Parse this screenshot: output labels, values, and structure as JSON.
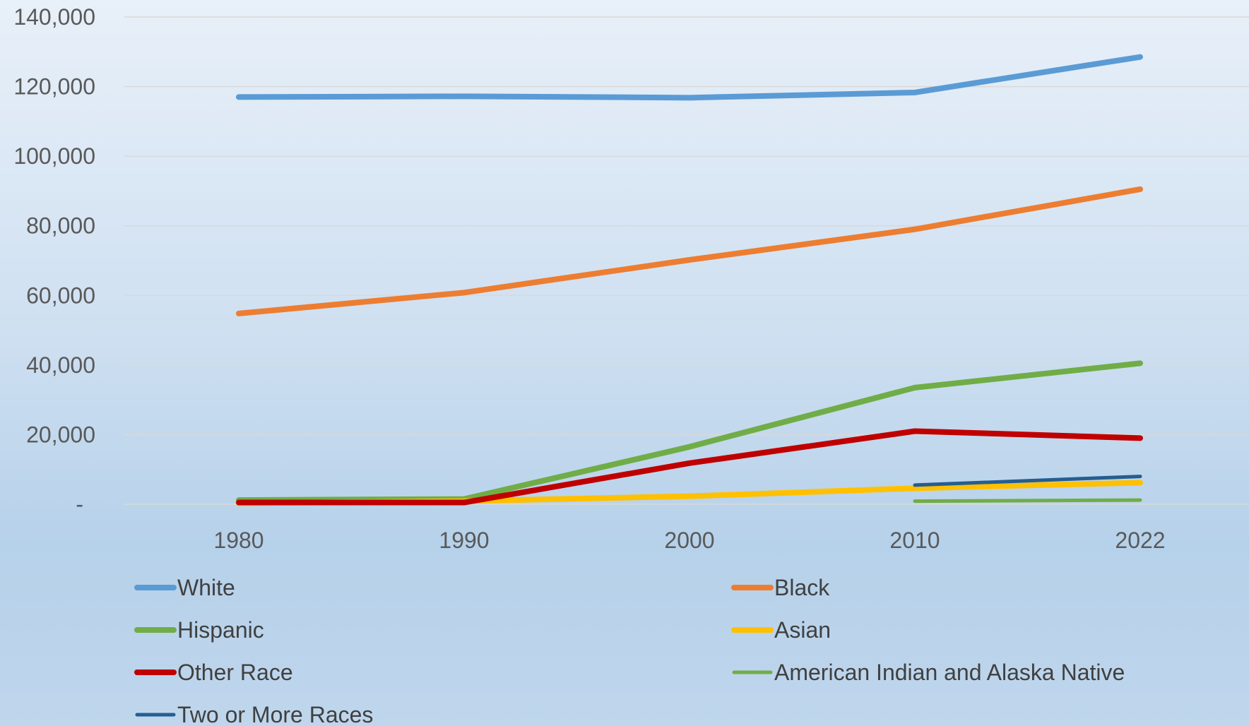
{
  "chart_data": {
    "type": "line",
    "title": "",
    "xlabel": "",
    "ylabel": "",
    "categories": [
      "1980",
      "1990",
      "2000",
      "2010",
      "2022"
    ],
    "ylim": [
      0,
      140000
    ],
    "y_ticks": [
      {
        "value": 0,
        "label": "-"
      },
      {
        "value": 20000,
        "label": "20,000"
      },
      {
        "value": 40000,
        "label": "40,000"
      },
      {
        "value": 60000,
        "label": "60,000"
      },
      {
        "value": 80000,
        "label": "80,000"
      },
      {
        "value": 100000,
        "label": "100,000"
      },
      {
        "value": 120000,
        "label": "120,000"
      },
      {
        "value": 140000,
        "label": "140,000"
      }
    ],
    "grid": true,
    "legend_position": "bottom",
    "series": [
      {
        "name": "White",
        "color": "#5b9bd5",
        "width": "thick",
        "values": [
          117000,
          117200,
          116800,
          118300,
          128500
        ]
      },
      {
        "name": "Black",
        "color": "#ed7d31",
        "width": "thick",
        "values": [
          54800,
          60800,
          70200,
          79000,
          90500
        ]
      },
      {
        "name": "Hispanic",
        "color": "#70ad47",
        "width": "thick",
        "values": [
          1200,
          1500,
          16500,
          33500,
          40500
        ]
      },
      {
        "name": "Asian",
        "color": "#ffc000",
        "width": "thick",
        "values": [
          300,
          900,
          2300,
          4600,
          6200
        ]
      },
      {
        "name": "Other Race",
        "color": "#c00000",
        "width": "thick",
        "values": [
          500,
          500,
          11800,
          21000,
          19000
        ]
      },
      {
        "name": "American Indian and Alaska Native",
        "color": "#70ad47",
        "width": "thin",
        "values": [
          null,
          null,
          null,
          900,
          1200
        ]
      },
      {
        "name": "Two or More Races",
        "color": "#255e91",
        "width": "thin",
        "values": [
          null,
          null,
          null,
          5500,
          8000
        ]
      }
    ]
  }
}
